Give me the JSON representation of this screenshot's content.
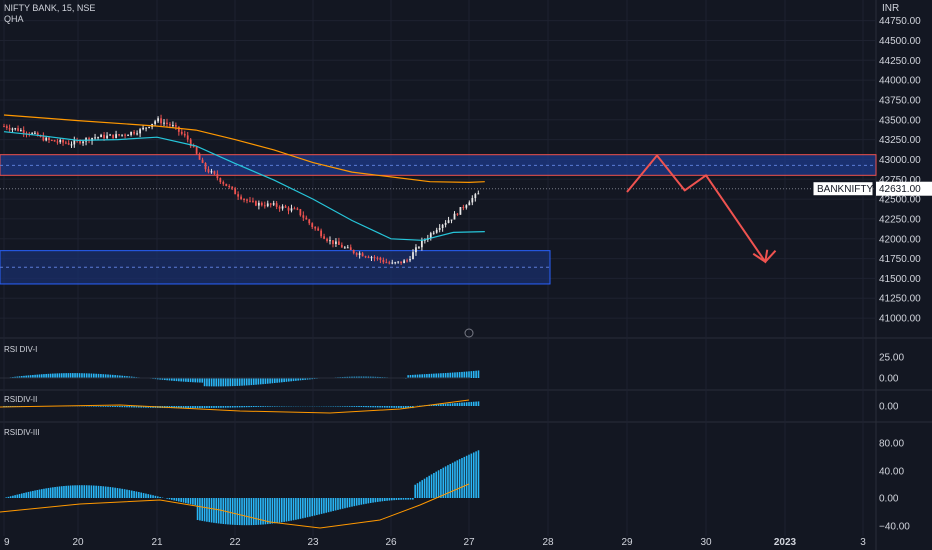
{
  "header": {
    "symbol_line": "NIFTY BANK, 15, NSE",
    "indicator": "QHA",
    "currency": "INR"
  },
  "price_axis": {
    "ticks": [
      "44750.00",
      "44500.00",
      "44250.00",
      "44000.00",
      "43750.00",
      "43500.00",
      "43250.00",
      "43000.00",
      "42750.00",
      "42500.00",
      "42250.00",
      "42000.00",
      "41750.00",
      "41500.00",
      "41250.00",
      "41000.00"
    ],
    "values": [
      44750,
      44500,
      44250,
      44000,
      43750,
      43500,
      43250,
      43000,
      42750,
      42500,
      42250,
      42000,
      41750,
      41500,
      41250,
      41000
    ],
    "range": [
      40900,
      44960
    ]
  },
  "last_price": {
    "symbol": "BANKNIFTY",
    "value": "42631.00",
    "price": 42631
  },
  "time_axis": {
    "labels": [
      "9",
      "20",
      "21",
      "22",
      "23",
      "26",
      "27",
      "28",
      "29",
      "30",
      "2023",
      "3"
    ]
  },
  "zones": [
    {
      "name": "resistance-zone",
      "top": 43060,
      "bottom": 42800,
      "border": "#ef5350",
      "fill": "#1e3a8a"
    },
    {
      "name": "support-zone",
      "top": 41850,
      "bottom": 41430,
      "border": "#2962ff",
      "fill": "#1a2f6b"
    }
  ],
  "projection": {
    "color": "#ef5350",
    "points": [
      [
        27.0,
        42590
      ],
      [
        27.38,
        43050
      ],
      [
        27.73,
        42610
      ],
      [
        28.0,
        42800
      ],
      [
        28.75,
        41710
      ],
      [
        28.88,
        41850
      ]
    ]
  },
  "panes": [
    {
      "name": "rsi-div-i",
      "label": "RSI DIV-I",
      "ticks": [
        "25.00",
        "0.00"
      ]
    },
    {
      "name": "rsi-div-ii",
      "label": "RSIDIV-II",
      "ticks": [
        "0.00"
      ]
    },
    {
      "name": "rsi-div-iii",
      "label": "RSIDIV-III",
      "ticks": [
        "80.00",
        "40.00",
        "0.00",
        "−40.00"
      ]
    }
  ],
  "colors": {
    "bull": "#e8e8e8",
    "bear": "#ef5350",
    "ema_fast": "#26c6da",
    "ema_slow": "#ff9800",
    "histogram": "#29b6f6",
    "signal": "#ff9800",
    "bg": "#131722",
    "grid": "#1e2230"
  },
  "chart_data": {
    "type": "line",
    "x_unit": "trading session (date label)",
    "series": [
      {
        "values": [
          [
            19.0,
            43420
          ],
          [
            19.3,
            43350
          ],
          [
            19.6,
            43240
          ],
          [
            19.9,
            43200
          ],
          [
            20.2,
            43280
          ],
          [
            20.5,
            43300
          ],
          [
            20.8,
            43370
          ],
          [
            21.0,
            43500
          ],
          [
            21.2,
            43420
          ],
          [
            21.4,
            43250
          ],
          [
            21.6,
            42900
          ],
          [
            21.8,
            42750
          ],
          [
            22.0,
            42580
          ],
          [
            22.2,
            42450
          ],
          [
            22.5,
            42420
          ],
          [
            22.8,
            42350
          ],
          [
            23.0,
            42150
          ],
          [
            23.2,
            41980
          ],
          [
            23.5,
            41840
          ],
          [
            23.8,
            41760
          ],
          [
            24.0,
            41680
          ],
          [
            24.2,
            41720
          ],
          [
            24.4,
            41960
          ],
          [
            24.6,
            42150
          ],
          [
            24.8,
            42280
          ],
          [
            25.0,
            42480
          ],
          [
            25.2,
            42620
          ]
        ]
      },
      {
        "values": [
          [
            19.0,
            43350
          ],
          [
            19.5,
            43300
          ],
          [
            20.0,
            43240
          ],
          [
            20.5,
            43250
          ],
          [
            21.0,
            43280
          ],
          [
            21.5,
            43170
          ],
          [
            22.0,
            42950
          ],
          [
            22.5,
            42740
          ],
          [
            23.0,
            42500
          ],
          [
            23.5,
            42230
          ],
          [
            24.0,
            42000
          ],
          [
            24.4,
            41980
          ],
          [
            24.8,
            42080
          ],
          [
            25.2,
            42090
          ]
        ]
      },
      {
        "values": [
          [
            19.0,
            43560
          ],
          [
            20.0,
            43490
          ],
          [
            21.0,
            43420
          ],
          [
            21.5,
            43370
          ],
          [
            22.0,
            43250
          ],
          [
            22.5,
            43120
          ],
          [
            23.0,
            42960
          ],
          [
            23.5,
            42840
          ],
          [
            24.0,
            42780
          ],
          [
            24.5,
            42720
          ],
          [
            25.0,
            42710
          ],
          [
            25.2,
            42720
          ]
        ]
      }
    ]
  }
}
